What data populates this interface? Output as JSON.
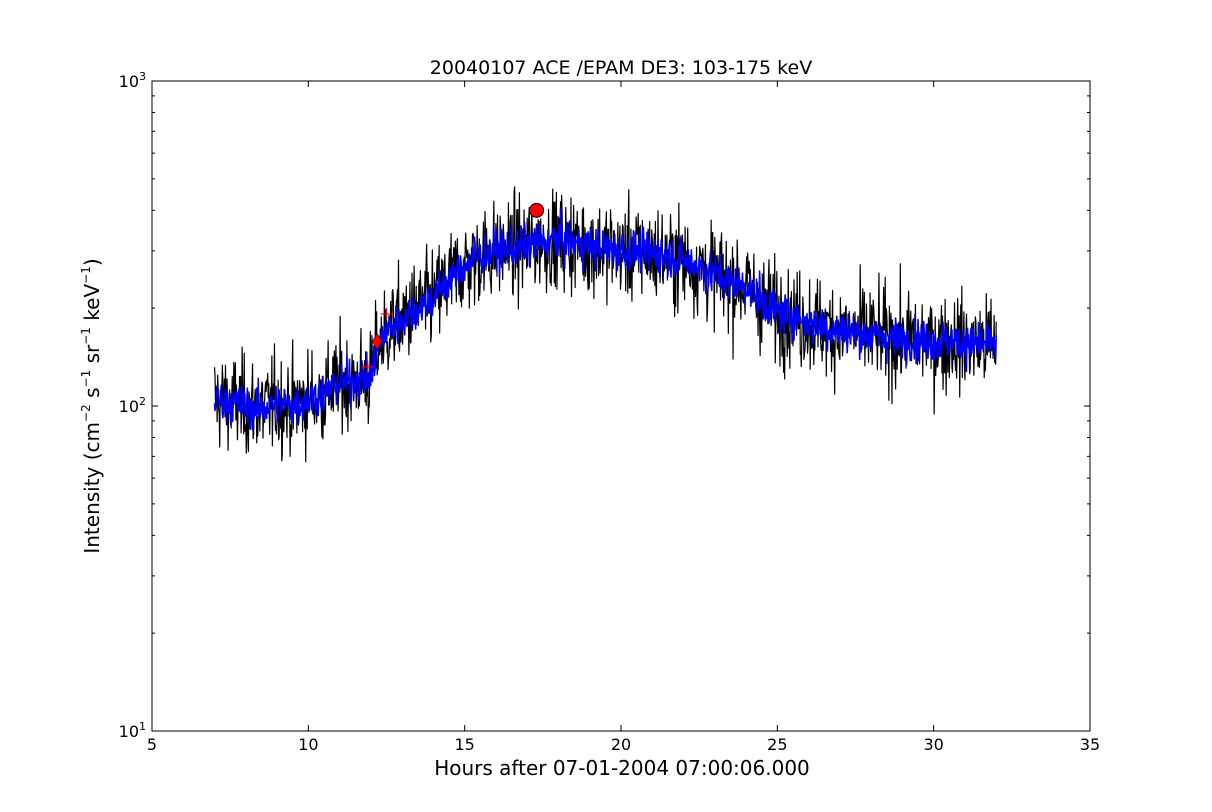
{
  "chart_data": {
    "type": "line",
    "title": "20040107 ACE /EPAM DE3: 103-175 keV",
    "xlabel": "Hours after 07-01-2004 07:00:06.000",
    "ylabel": {
      "main": "Intensity (cm",
      "e1": "−2",
      "mid1": " s",
      "e2": "−1",
      "mid2": " sr",
      "e3": "−1",
      "mid3": " keV",
      "e4": "−1",
      "end": ")"
    },
    "xlim": [
      5,
      35
    ],
    "ylim": [
      10,
      1000
    ],
    "yscale": "log",
    "grid": false,
    "legend": "none",
    "x_ticks": [
      "5",
      "10",
      "15",
      "20",
      "25",
      "30",
      "35"
    ],
    "y_ticks": [
      {
        "base": "10",
        "exp": "1",
        "value": 10
      },
      {
        "base": "10",
        "exp": "2",
        "value": 100
      },
      {
        "base": "10",
        "exp": "3",
        "value": 1000
      }
    ],
    "series": [
      {
        "color": "#000000",
        "style": "raw",
        "x": [
          7.0,
          8.0,
          8.5,
          9.0,
          9.5,
          10.0,
          10.5,
          11.0,
          11.5,
          12.0,
          12.2,
          12.5,
          13.0,
          13.5,
          14.0,
          14.5,
          15.0,
          15.5,
          16.0,
          16.5,
          17.0,
          17.5,
          18.0,
          18.5,
          19.0,
          19.5,
          20.0,
          20.5,
          21.0,
          21.5,
          22.0,
          22.5,
          23.0,
          23.5,
          24.0,
          24.5,
          25.0,
          25.5,
          26.0,
          26.5,
          27.0,
          27.5,
          28.0,
          28.5,
          29.0,
          29.5,
          30.0,
          30.5,
          31.0,
          31.5,
          32.0
        ],
        "y": [
          105,
          100,
          98,
          102,
          100,
          105,
          110,
          118,
          120,
          122,
          150,
          170,
          185,
          200,
          215,
          245,
          270,
          290,
          300,
          305,
          310,
          320,
          325,
          318,
          310,
          305,
          300,
          298,
          295,
          290,
          280,
          270,
          255,
          240,
          235,
          210,
          195,
          190,
          180,
          175,
          170,
          168,
          165,
          162,
          160,
          160,
          158,
          158,
          156,
          155,
          155
        ],
        "noise": 0.17
      },
      {
        "color": "#0000ff",
        "style": "smoothed",
        "x": [
          7.0,
          8.0,
          8.5,
          9.0,
          9.5,
          10.0,
          10.5,
          11.0,
          11.5,
          12.0,
          12.2,
          12.5,
          13.0,
          13.5,
          14.0,
          14.5,
          15.0,
          15.5,
          16.0,
          16.5,
          17.0,
          17.5,
          18.0,
          18.5,
          19.0,
          19.5,
          20.0,
          20.5,
          21.0,
          21.5,
          22.0,
          22.5,
          23.0,
          23.5,
          24.0,
          24.5,
          25.0,
          25.5,
          26.0,
          26.5,
          27.0,
          27.5,
          28.0,
          28.5,
          29.0,
          29.5,
          30.0,
          30.5,
          31.0,
          31.5,
          32.0
        ],
        "y": [
          105,
          100,
          98,
          102,
          100,
          105,
          110,
          118,
          120,
          122,
          150,
          170,
          185,
          200,
          215,
          245,
          270,
          290,
          300,
          305,
          310,
          320,
          325,
          318,
          310,
          305,
          300,
          298,
          295,
          290,
          280,
          270,
          255,
          240,
          235,
          210,
          195,
          190,
          180,
          175,
          170,
          168,
          165,
          162,
          160,
          160,
          158,
          158,
          156,
          155,
          155
        ],
        "noise": 0.07
      }
    ],
    "markers": [
      {
        "type": "circle",
        "x": 17.3,
        "y": 400,
        "color": "#ff0000"
      },
      {
        "type": "diamond",
        "x": 12.2,
        "y": 158,
        "color": "#ff0000"
      },
      {
        "type": "plus",
        "x": 12.5,
        "y": 192,
        "color": "#ff0000"
      },
      {
        "type": "plus",
        "x": 11.9,
        "y": 132,
        "color": "#ff0000"
      }
    ]
  }
}
